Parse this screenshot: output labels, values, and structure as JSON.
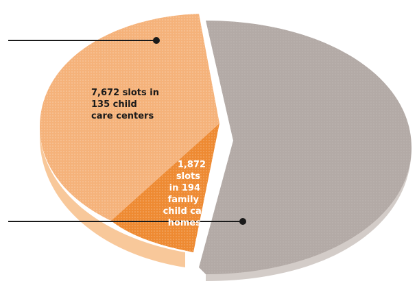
{
  "chart_data": {
    "type": "pie",
    "title": "",
    "slices": [
      {
        "label": "7,672 slots in 135 child care centers",
        "slots": 7672,
        "sites": 135,
        "color": "#f5b27a"
      },
      {
        "label": "1,872 slots in 194 family child care homes",
        "slots": 1872,
        "sites": 194,
        "color": "#ee8a32"
      },
      {
        "label": "",
        "color": "#b3aaa6"
      }
    ],
    "annotations": {
      "centers_lines": [
        "7,672 slots in",
        "135 child",
        "care centers"
      ],
      "homes_lines": [
        "1,872",
        "slots",
        "in 194",
        "family",
        "child care",
        "homes"
      ]
    },
    "colors": {
      "centers": "#f5b27a",
      "homes": "#ee8a32",
      "remainder": "#b3aaa6",
      "remainder_side": "#d3ccc8",
      "orange_side": "#f8c89a",
      "leader": "#1a1a1a"
    }
  }
}
